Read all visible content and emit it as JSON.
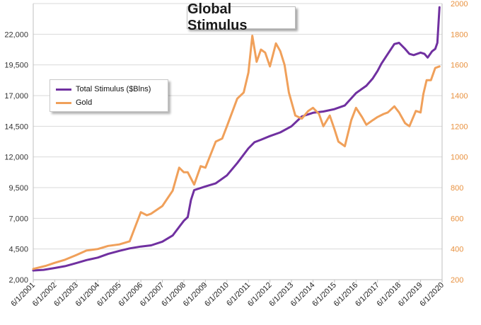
{
  "chart_data": {
    "type": "line",
    "title": "Global Stimulus",
    "legend": {
      "placement": "left",
      "entries": [
        "Total Stimulus ($Blns)",
        "Gold"
      ]
    },
    "x_tick_labels": [
      "6/1/2001",
      "6/1/2002",
      "6/1/2003",
      "6/1/2004",
      "6/1/2005",
      "6/1/2006",
      "6/1/2007",
      "6/1/2008",
      "6/1/2009",
      "6/1/2010",
      "6/1/2011",
      "6/1/2012",
      "6/1/2013",
      "6/1/2014",
      "6/1/2015",
      "6/1/2016",
      "6/1/2017",
      "6/1/2018",
      "6/1/2019",
      "6/1/2020"
    ],
    "x_range": [
      2001.42,
      2020.42
    ],
    "y_left": {
      "range": [
        2000,
        24500
      ],
      "ticks": [
        "2,000",
        "4,500",
        "7,000",
        "9,500",
        "12,000",
        "14,500",
        "17,000",
        "19,500",
        "22,000"
      ],
      "tick_values": [
        2000,
        4500,
        7000,
        9500,
        12000,
        14500,
        17000,
        19500,
        22000
      ]
    },
    "y_right": {
      "range": [
        200,
        2000
      ],
      "ticks": [
        "200",
        "400",
        "600",
        "800",
        "1000",
        "1200",
        "1400",
        "1600",
        "1800",
        "2000"
      ],
      "tick_values": [
        200,
        400,
        600,
        800,
        1000,
        1200,
        1400,
        1600,
        1800,
        2000
      ]
    },
    "grid": "horizontal",
    "colors": {
      "stimulus": "#7030a0",
      "gold": "#f0a05a",
      "grid": "#d9d9d9",
      "right_axis_text": "#e8913f"
    },
    "series": [
      {
        "name": "Total Stimulus ($Blns)",
        "axis": "left",
        "x": [
          2001.42,
          2001.9,
          2002.42,
          2002.9,
          2003.42,
          2003.9,
          2004.42,
          2004.9,
          2005.42,
          2005.9,
          2006.42,
          2006.9,
          2007.42,
          2007.9,
          2008.42,
          2008.6,
          2008.75,
          2008.9,
          2009.42,
          2009.9,
          2010.42,
          2010.9,
          2011.42,
          2011.7,
          2012.0,
          2012.42,
          2012.9,
          2013.42,
          2013.9,
          2014.42,
          2014.9,
          2015.42,
          2015.9,
          2016.42,
          2016.9,
          2017.2,
          2017.42,
          2017.6,
          2017.9,
          2018.2,
          2018.42,
          2018.7,
          2018.9,
          2019.1,
          2019.42,
          2019.6,
          2019.75,
          2019.95,
          2020.1,
          2020.2,
          2020.3
        ],
        "values": [
          2750,
          2800,
          2950,
          3100,
          3350,
          3600,
          3800,
          4100,
          4350,
          4550,
          4700,
          4800,
          5100,
          5600,
          6800,
          7100,
          8500,
          9300,
          9600,
          9850,
          10500,
          11500,
          12700,
          13200,
          13400,
          13700,
          14000,
          14500,
          15300,
          15600,
          15700,
          15900,
          16200,
          17200,
          17800,
          18400,
          19000,
          19600,
          20400,
          21200,
          21300,
          20800,
          20400,
          20300,
          20500,
          20400,
          20100,
          20600,
          20800,
          21300,
          24200
        ]
      },
      {
        "name": "Gold",
        "axis": "right",
        "x": [
          2001.42,
          2001.7,
          2002.0,
          2002.42,
          2002.9,
          2003.42,
          2003.9,
          2004.42,
          2004.9,
          2005.42,
          2005.9,
          2006.2,
          2006.42,
          2006.7,
          2006.9,
          2007.42,
          2007.9,
          2008.2,
          2008.42,
          2008.6,
          2008.9,
          2009.2,
          2009.42,
          2009.9,
          2010.2,
          2010.42,
          2010.9,
          2011.2,
          2011.42,
          2011.6,
          2011.8,
          2012.0,
          2012.2,
          2012.42,
          2012.7,
          2012.9,
          2013.1,
          2013.3,
          2013.6,
          2013.9,
          2014.2,
          2014.42,
          2014.7,
          2014.9,
          2015.2,
          2015.42,
          2015.6,
          2015.9,
          2016.2,
          2016.42,
          2016.7,
          2016.9,
          2017.2,
          2017.42,
          2017.7,
          2017.9,
          2018.2,
          2018.42,
          2018.7,
          2018.9,
          2019.2,
          2019.42,
          2019.55,
          2019.7,
          2019.9,
          2020.1,
          2020.3
        ],
        "values": [
          270,
          280,
          290,
          310,
          330,
          360,
          390,
          400,
          420,
          430,
          450,
          560,
          640,
          620,
          630,
          680,
          780,
          930,
          900,
          900,
          820,
          940,
          930,
          1100,
          1120,
          1200,
          1380,
          1420,
          1550,
          1790,
          1620,
          1700,
          1680,
          1590,
          1740,
          1690,
          1600,
          1420,
          1270,
          1250,
          1300,
          1320,
          1280,
          1200,
          1270,
          1180,
          1100,
          1070,
          1240,
          1320,
          1260,
          1210,
          1240,
          1260,
          1280,
          1290,
          1330,
          1290,
          1220,
          1200,
          1300,
          1290,
          1410,
          1500,
          1500,
          1580,
          1590
        ]
      }
    ]
  }
}
